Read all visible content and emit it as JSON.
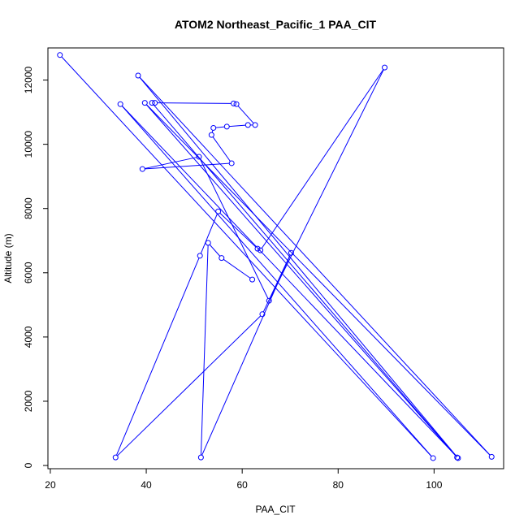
{
  "chart_data": {
    "type": "line",
    "title": "ATOM2 Northeast_Pacific_1 PAA_CIT",
    "xlabel": "PAA_CIT",
    "ylabel": "Altitude (m)",
    "xlim": [
      19.5,
      114.5
    ],
    "ylim": [
      -100,
      13000
    ],
    "xticks": [
      20,
      40,
      60,
      80,
      100
    ],
    "yticks": [
      0,
      2000,
      4000,
      6000,
      8000,
      10000,
      12000
    ],
    "grid": false,
    "legend": "none",
    "series_color": "#0000ff",
    "marker": "open-circle",
    "x": [
      22.0,
      99.8,
      34.6,
      105.0,
      38.3,
      112.0,
      39.7,
      104.8,
      41.2,
      41.8,
      58.2,
      58.8,
      62.7,
      61.2,
      56.8,
      54.0,
      53.6,
      57.8,
      39.2,
      51.0,
      65.6,
      89.7,
      63.8,
      63.2,
      55.0,
      51.2,
      33.6,
      64.2,
      70.2,
      51.4,
      52.9,
      55.7,
      62.1
    ],
    "y": [
      12780,
      230,
      11250,
      230,
      12140,
      270,
      11290,
      250,
      11290,
      11290,
      11270,
      11250,
      10600,
      10600,
      10550,
      10510,
      10290,
      9410,
      9230,
      9610,
      5130,
      12390,
      6700,
      6750,
      7910,
      6530,
      250,
      4710,
      6620,
      250,
      6930,
      6460,
      5790
    ]
  }
}
